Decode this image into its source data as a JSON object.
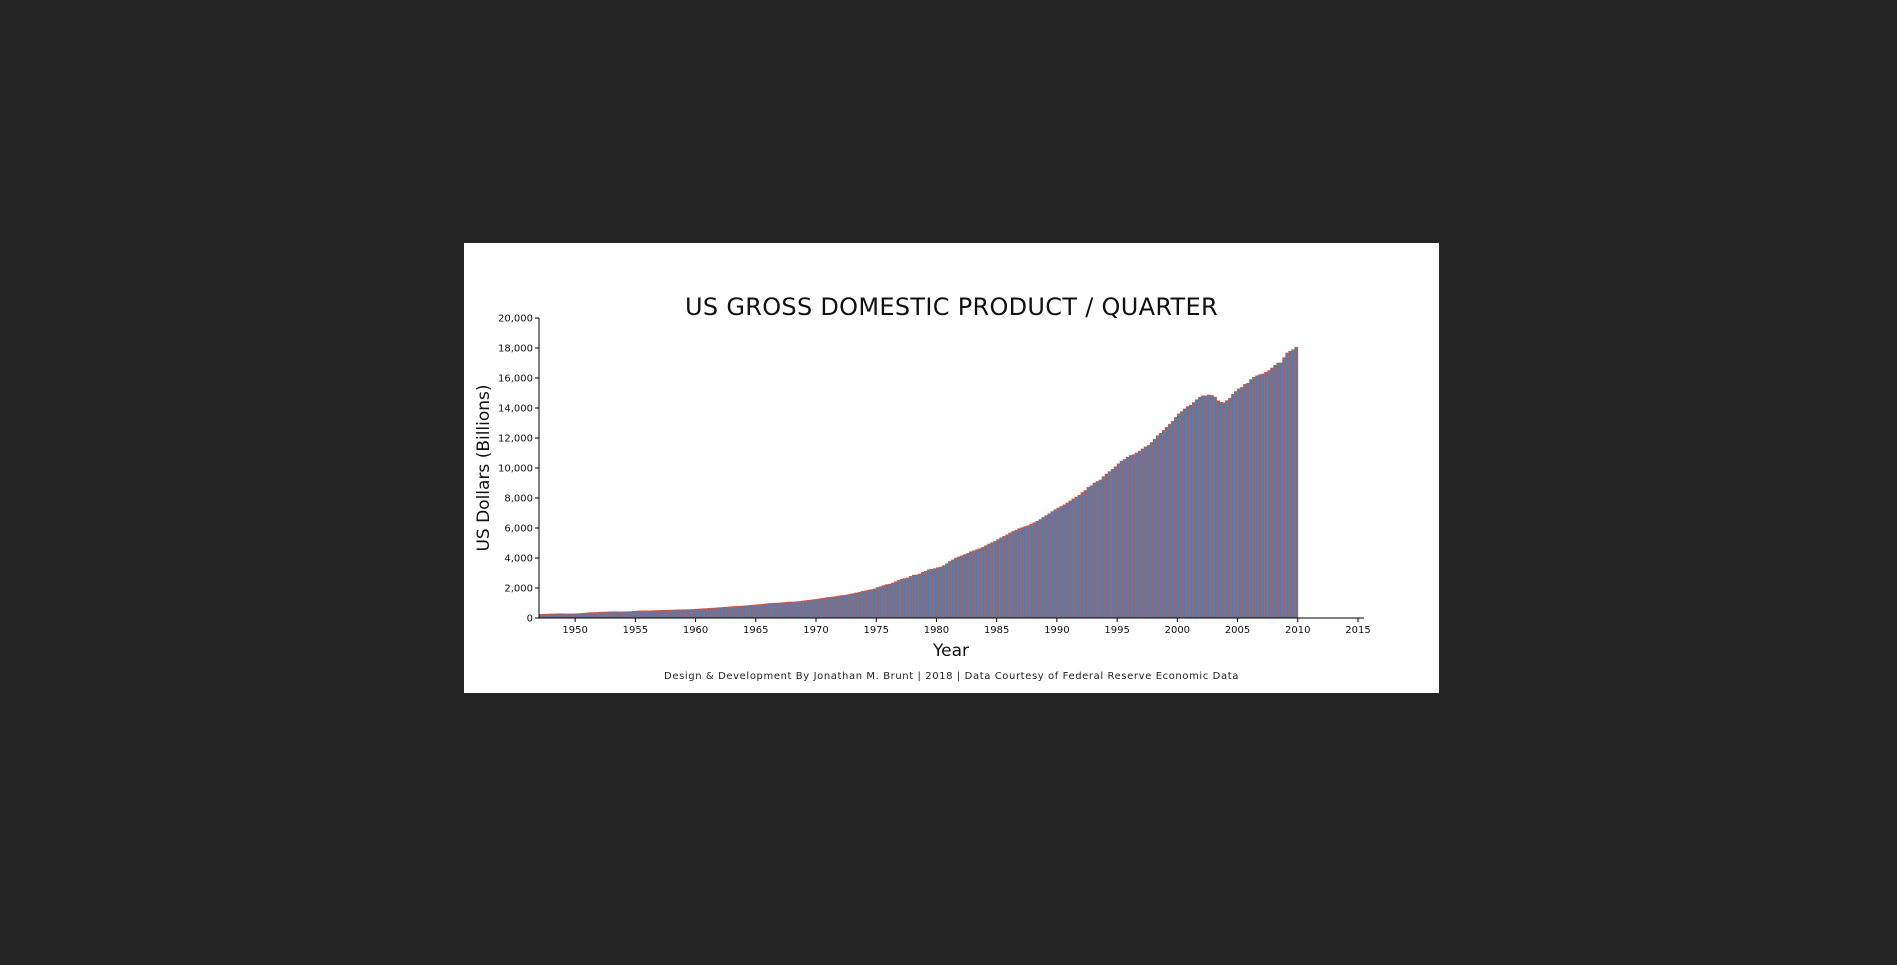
{
  "page": {
    "background": "#252525",
    "card_background": "#ffffff",
    "bar_fill": "#4a7fb5",
    "bar_stroke": "#d9533a"
  },
  "chart_data": {
    "type": "bar",
    "title": "US GROSS DOMESTIC PRODUCT / QUARTER",
    "xlabel": "Year",
    "ylabel": "US Dollars (Billions)",
    "credit": "Design & Development By Jonathan M. Brunt | 2018 | Data Courtesy of Federal Reserve Economic Data",
    "ylim": [
      0,
      20000
    ],
    "xlim": [
      1947,
      2015.5
    ],
    "y_ticks": [
      "0",
      "2,000",
      "4,000",
      "6,000",
      "8,000",
      "10,000",
      "12,000",
      "14,000",
      "16,000",
      "18,000",
      "20,000"
    ],
    "x_ticks": [
      "1950",
      "1955",
      "1960",
      "1965",
      "1970",
      "1975",
      "1980",
      "1985",
      "1990",
      "1995",
      "2000",
      "2005",
      "2010",
      "2015"
    ],
    "grid": false,
    "legend": "none",
    "series": [
      {
        "x_start": 1947.0,
        "frequency": "quarterly",
        "values": [
          243,
          246,
          250,
          260,
          266,
          272,
          279,
          280,
          275,
          271,
          272,
          271,
          281,
          290,
          308,
          320,
          344,
          351,
          360,
          366,
          381,
          389,
          393,
          404,
          411,
          412,
          407,
          406,
          411,
          416,
          424,
          440,
          456,
          467,
          474,
          474,
          473,
          478,
          486,
          495,
          505,
          505,
          514,
          519,
          526,
          535,
          541,
          544,
          544,
          553,
          557,
          564,
          583,
          598,
          610,
          622,
          638,
          651,
          660,
          675,
          687,
          706,
          721,
          741,
          755,
          768,
          774,
          785,
          808,
          821,
          844,
          862,
          873,
          889,
          914,
          937,
          957,
          971,
          987,
          992,
          1005,
          1023,
          1045,
          1055,
          1062,
          1075,
          1094,
          1124,
          1149,
          1172,
          1198,
          1224,
          1249,
          1282,
          1307,
          1349,
          1372,
          1396,
          1421,
          1462,
          1488,
          1509,
          1542,
          1589,
          1621,
          1673,
          1714,
          1768,
          1805,
          1853,
          1886,
          1934,
          2028,
          2082,
          2155,
          2220,
          2247,
          2325,
          2412,
          2497,
          2571,
          2628,
          2666,
          2768,
          2850,
          2866,
          2926,
          3044,
          3113,
          3216,
          3241,
          3287,
          3351,
          3391,
          3487,
          3614,
          3759,
          3871,
          3993,
          4069,
          4144,
          4223,
          4297,
          4411,
          4478,
          4552,
          4617,
          4704,
          4817,
          4923,
          5019,
          5103,
          5225,
          5338,
          5436,
          5544,
          5663,
          5763,
          5843,
          5951,
          6015,
          6092,
          6145,
          6240,
          6344,
          6443,
          6556,
          6696,
          6819,
          6941,
          7086,
          7211,
          7325,
          7430,
          7542,
          7666,
          7800,
          7935,
          8059,
          8182,
          8360,
          8495,
          8703,
          8807,
          8990,
          9091,
          9196,
          9414,
          9594,
          9755,
          9901,
          10076,
          10273,
          10448,
          10566,
          10710,
          10830,
          10880,
          10999,
          11120,
          11264,
          11402,
          11497,
          11691,
          11911,
          12145,
          12304,
          12501,
          12709,
          12904,
          13113,
          13361,
          13599,
          13755,
          13941,
          14088,
          14181,
          14354,
          14551,
          14707,
          14813,
          14800,
          14864,
          14828,
          14721,
          14475,
          14369,
          14340,
          14485,
          14651,
          14911,
          15097,
          15274,
          15365,
          15568,
          15640,
          15890,
          16042,
          16141,
          16216,
          16270,
          16382,
          16487,
          16656,
          16841,
          16988,
          16998,
          17351,
          17661,
          17776,
          17881,
          18040
        ]
      }
    ]
  }
}
